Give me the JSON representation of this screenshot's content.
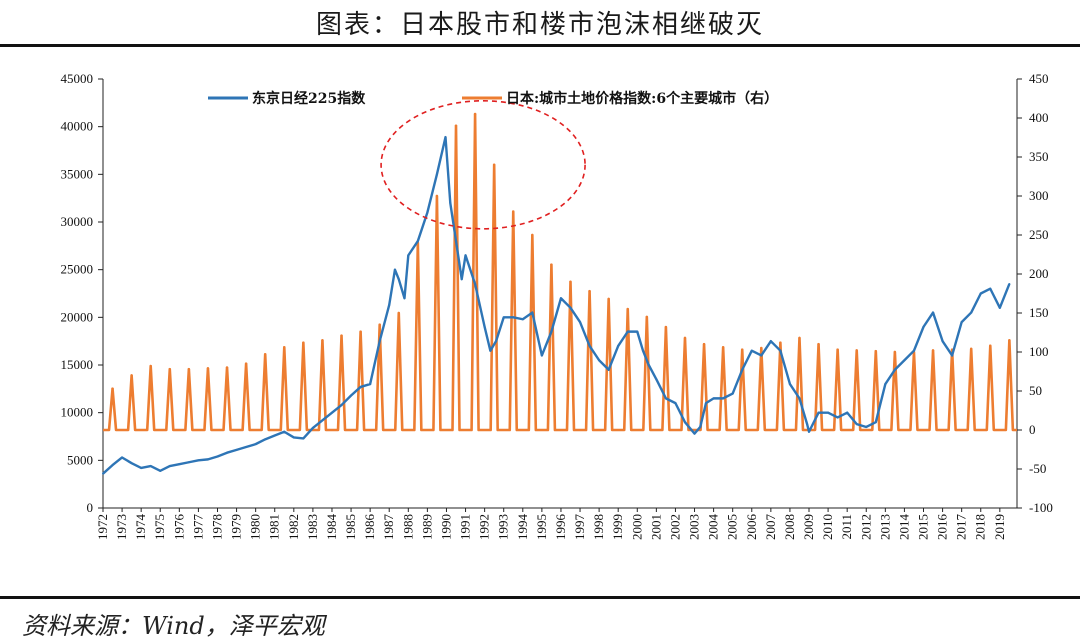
{
  "title": "图表：日本股市和楼市泡沫相继破灭",
  "source": "资料来源：Wind，泽平宏观",
  "colors": {
    "nikkei": "#2E75B6",
    "land": "#ED7D31",
    "highlight": "#E02020",
    "axis": "#222222"
  },
  "chart_data": {
    "type": "line",
    "title": "图表：日本股市和楼市泡沫相继破灭",
    "left_axis": {
      "ylim": [
        0,
        45000
      ],
      "ticks": [
        "0",
        "5000",
        "10000",
        "15000",
        "20000",
        "25000",
        "30000",
        "35000",
        "40000",
        "45000"
      ]
    },
    "right_axis": {
      "ylim": [
        -100,
        450
      ],
      "ticks": [
        "-100",
        "-50",
        "0",
        "50",
        "100",
        "150",
        "200",
        "250",
        "300",
        "350",
        "400",
        "450"
      ]
    },
    "x_tick_labels": [
      "1972",
      "1973",
      "1974",
      "1975",
      "1976",
      "1977",
      "1978",
      "1979",
      "1980",
      "1981",
      "1982",
      "1983",
      "1984",
      "1985",
      "1986",
      "1987",
      "1988",
      "1989",
      "1990",
      "1991",
      "1992",
      "1993",
      "1994",
      "1995",
      "1996",
      "1997",
      "1998",
      "1999",
      "2000",
      "2001",
      "2002",
      "2003",
      "2004",
      "2005",
      "2006",
      "2007",
      "2008",
      "2009",
      "2010",
      "2011",
      "2012",
      "2013",
      "2014",
      "2015",
      "2016",
      "2017",
      "2018",
      "2019"
    ],
    "legend_placement": "top",
    "series": [
      {
        "name": "东京日经225指数",
        "axis": "left",
        "style": "line",
        "x": [
          1972,
          1972.5,
          1973,
          1973.5,
          1974,
          1974.5,
          1975,
          1975.5,
          1976,
          1976.5,
          1977,
          1977.5,
          1978,
          1978.5,
          1979,
          1979.5,
          1980,
          1980.5,
          1981,
          1981.5,
          1982,
          1982.5,
          1983,
          1983.5,
          1984,
          1984.5,
          1985,
          1985.5,
          1986,
          1986.5,
          1987,
          1987.3,
          1987.5,
          1987.8,
          1988,
          1988.5,
          1989,
          1989.5,
          1989.95,
          1990.2,
          1990.5,
          1990.8,
          1991,
          1991.5,
          1992,
          1992.3,
          1992.6,
          1993,
          1993.5,
          1994,
          1994.5,
          1995,
          1995.5,
          1996,
          1996.5,
          1997,
          1997.5,
          1998,
          1998.5,
          1999,
          1999.5,
          2000,
          2000.3,
          2000.6,
          2001,
          2001.5,
          2002,
          2002.5,
          2003,
          2003.3,
          2003.6,
          2004,
          2004.5,
          2005,
          2005.5,
          2006,
          2006.5,
          2007,
          2007.5,
          2008,
          2008.5,
          2008.9,
          2009,
          2009.5,
          2010,
          2010.5,
          2011,
          2011.5,
          2012,
          2012.5,
          2013,
          2013.5,
          2014,
          2014.5,
          2015,
          2015.5,
          2016,
          2016.5,
          2017,
          2017.5,
          2018,
          2018.5,
          2019,
          2019.5
        ],
        "values": [
          3600,
          4500,
          5300,
          4700,
          4200,
          4400,
          3900,
          4400,
          4600,
          4800,
          5000,
          5100,
          5400,
          5800,
          6100,
          6400,
          6700,
          7200,
          7600,
          8000,
          7400,
          7300,
          8400,
          9200,
          10000,
          10800,
          11800,
          12700,
          13000,
          17500,
          21300,
          25000,
          24000,
          22000,
          26500,
          28000,
          31000,
          35000,
          38900,
          32000,
          28000,
          24000,
          26500,
          23500,
          19000,
          16500,
          17500,
          20000,
          20000,
          19800,
          20500,
          16000,
          18500,
          22000,
          21000,
          19500,
          17000,
          15500,
          14500,
          17000,
          18500,
          18500,
          16500,
          15000,
          13500,
          11500,
          11000,
          9000,
          7800,
          8500,
          11000,
          11500,
          11500,
          12000,
          14500,
          16500,
          16000,
          17500,
          16500,
          13000,
          11500,
          8800,
          8000,
          10000,
          10000,
          9500,
          10000,
          8800,
          8500,
          9000,
          13000,
          14500,
          15500,
          16500,
          19000,
          20500,
          17500,
          16000,
          19500,
          20500,
          22500,
          23000,
          21000,
          23500
        ]
      },
      {
        "name": "日本:城市土地价格指数:6个主要城市（右）",
        "axis": "right",
        "style": "annual-spikes",
        "x": [
          1972,
          1973,
          1974,
          1975,
          1976,
          1977,
          1978,
          1979,
          1980,
          1981,
          1982,
          1983,
          1984,
          1985,
          1986,
          1987,
          1988,
          1989,
          1990,
          1991,
          1992,
          1993,
          1994,
          1995,
          1996,
          1997,
          1998,
          1999,
          2000,
          2001,
          2002,
          2003,
          2004,
          2005,
          2006,
          2007,
          2008,
          2009,
          2010,
          2011,
          2012,
          2013,
          2014,
          2015,
          2016,
          2017,
          2018,
          2019
        ],
        "values": [
          53,
          70,
          82,
          78,
          78,
          79,
          80,
          85,
          97,
          106,
          112,
          115,
          121,
          126,
          135,
          150,
          240,
          300,
          390,
          405,
          340,
          280,
          250,
          212,
          190,
          178,
          168,
          155,
          145,
          132,
          118,
          110,
          106,
          103,
          105,
          112,
          118,
          110,
          103,
          102,
          101,
          100,
          100,
          102,
          103,
          104,
          108,
          115
        ]
      }
    ]
  },
  "annotations": [
    {
      "type": "dashed-ellipse",
      "around": "1989-1993 peak"
    }
  ]
}
